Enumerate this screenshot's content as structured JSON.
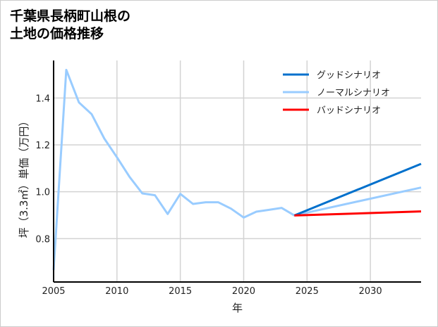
{
  "chart_data": {
    "type": "line",
    "title_lines": [
      "千葉県長柄町山根の",
      "土地の価格推移"
    ],
    "xlabel": "年",
    "ylabel": "坪（3.3㎡）単価（万円）",
    "xlim": [
      2005,
      2034
    ],
    "ylim": [
      0.615,
      1.56
    ],
    "xticks": [
      2005,
      2010,
      2015,
      2020,
      2025,
      2030
    ],
    "yticks": [
      0.8,
      1.0,
      1.2,
      1.4
    ],
    "ytick_labels": [
      "0.8",
      "1.0",
      "1.2",
      "1.4"
    ],
    "grid": true,
    "legend_position": "top-right",
    "series": [
      {
        "name": "グッドシナリオ",
        "color": "#0070cc",
        "x": [
          2024,
          2034
        ],
        "y": [
          0.899,
          1.119
        ]
      },
      {
        "name": "ノーマルシナリオ",
        "color": "#99ccff",
        "x": [
          2005,
          2006,
          2007,
          2008,
          2009,
          2010,
          2011,
          2012,
          2013,
          2014,
          2015,
          2016,
          2017,
          2018,
          2019,
          2020,
          2021,
          2022,
          2023,
          2024,
          2034
        ],
        "y": [
          0.666,
          1.52,
          1.381,
          1.331,
          1.227,
          1.147,
          1.063,
          0.993,
          0.985,
          0.905,
          0.991,
          0.948,
          0.955,
          0.955,
          0.928,
          0.89,
          0.915,
          0.923,
          0.931,
          0.899,
          1.018
        ]
      },
      {
        "name": "バッドシナリオ",
        "color": "#ff0000",
        "x": [
          2024,
          2034
        ],
        "y": [
          0.899,
          0.916
        ]
      }
    ]
  }
}
